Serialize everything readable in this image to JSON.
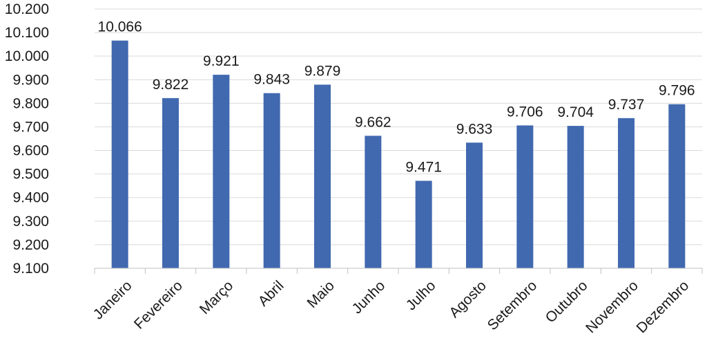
{
  "chart_data": {
    "type": "bar",
    "categories": [
      "Janeiro",
      "Fevereiro",
      "Março",
      "Abril",
      "Maio",
      "Junho",
      "Julho",
      "Agosto",
      "Setembro",
      "Outubro",
      "Novembro",
      "Dezembro"
    ],
    "values": [
      10066,
      9822,
      9921,
      9843,
      9879,
      9662,
      9471,
      9633,
      9706,
      9704,
      9737,
      9796
    ],
    "data_labels": [
      "10.066",
      "9.822",
      "9.921",
      "9.843",
      "9.879",
      "9.662",
      "9.471",
      "9.633",
      "9.706",
      "9.704",
      "9.737",
      "9.796"
    ],
    "ylim": [
      9100,
      10200
    ],
    "yticks": [
      9100,
      9200,
      9300,
      9400,
      9500,
      9600,
      9700,
      9800,
      9900,
      10000,
      10100,
      10200
    ],
    "ytick_labels": [
      "9.100",
      "9.200",
      "9.300",
      "9.400",
      "9.500",
      "9.600",
      "9.700",
      "9.800",
      "9.900",
      "10.000",
      "10.100",
      "10.200"
    ],
    "title": "",
    "xlabel": "",
    "ylabel": "",
    "grid": "horizontal",
    "legend": "none",
    "colors": {
      "bar": "#4169B0",
      "grid": "#d9d9d9",
      "axis": "#bfbfbf",
      "text": "#1a1a1a"
    }
  }
}
